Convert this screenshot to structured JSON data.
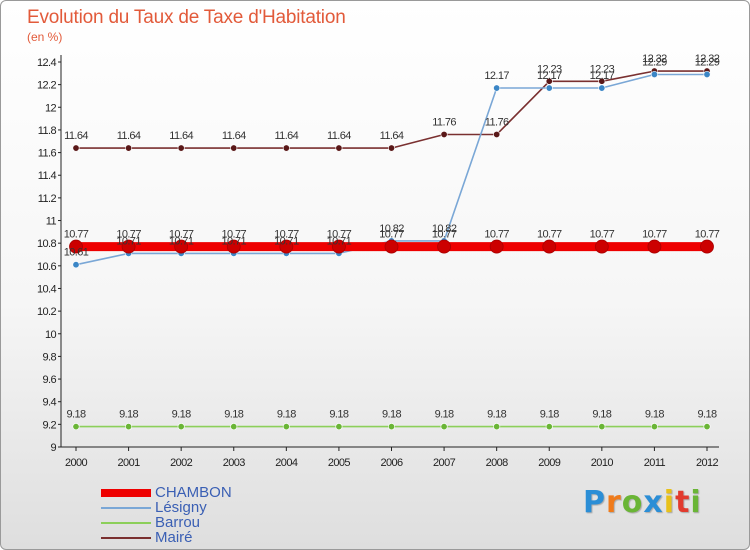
{
  "header": {
    "title": "Evolution du Taux de Taxe d'Habitation",
    "subtitle": "(en %)"
  },
  "logo": {
    "text": "Proxiti",
    "colors": [
      "#2b8ed6",
      "#f07b1b",
      "#6ab536",
      "#2b8ed6",
      "#e8c11a",
      "#e23b2e",
      "#6ab536"
    ]
  },
  "chart_data": {
    "type": "line",
    "title": "Evolution du Taux de Taxe d'Habitation",
    "ylabel": "(en %)",
    "xlabel": "",
    "ylim": [
      9,
      12.4
    ],
    "yticks": [
      "9",
      "9.2",
      "9.4",
      "9.6",
      "9.8",
      "10",
      "10.2",
      "10.4",
      "10.6",
      "10.8",
      "11",
      "11.2",
      "11.4",
      "11.6",
      "11.8",
      "12",
      "12.2",
      "12.4"
    ],
    "grid": false,
    "legend_position": "bottom-left",
    "x": [
      "2000",
      "2001",
      "2002",
      "2003",
      "2004",
      "2005",
      "2006",
      "2007",
      "2008",
      "2009",
      "2010",
      "2011",
      "2012"
    ],
    "series": [
      {
        "name": "CHAMBON",
        "color": "#ee0000",
        "marker": "#cc0000",
        "values": [
          10.77,
          10.77,
          10.77,
          10.77,
          10.77,
          10.77,
          10.77,
          10.77,
          10.77,
          10.77,
          10.77,
          10.77,
          10.77
        ]
      },
      {
        "name": "Lésigny",
        "color": "#7aa7d6",
        "marker": "#3b86c6",
        "values": [
          10.61,
          10.71,
          10.71,
          10.71,
          10.71,
          10.71,
          10.82,
          10.82,
          12.17,
          12.17,
          12.17,
          12.29,
          12.29
        ]
      },
      {
        "name": "Barrou",
        "color": "#8ccf5a",
        "marker": "#6ab536",
        "values": [
          9.18,
          9.18,
          9.18,
          9.18,
          9.18,
          9.18,
          9.18,
          9.18,
          9.18,
          9.18,
          9.18,
          9.18,
          9.18
        ]
      },
      {
        "name": "Mairé",
        "color": "#7a3030",
        "marker": "#5a1818",
        "values": [
          11.64,
          11.64,
          11.64,
          11.64,
          11.64,
          11.64,
          11.64,
          11.76,
          11.76,
          12.23,
          12.23,
          12.32,
          12.32
        ]
      }
    ]
  }
}
